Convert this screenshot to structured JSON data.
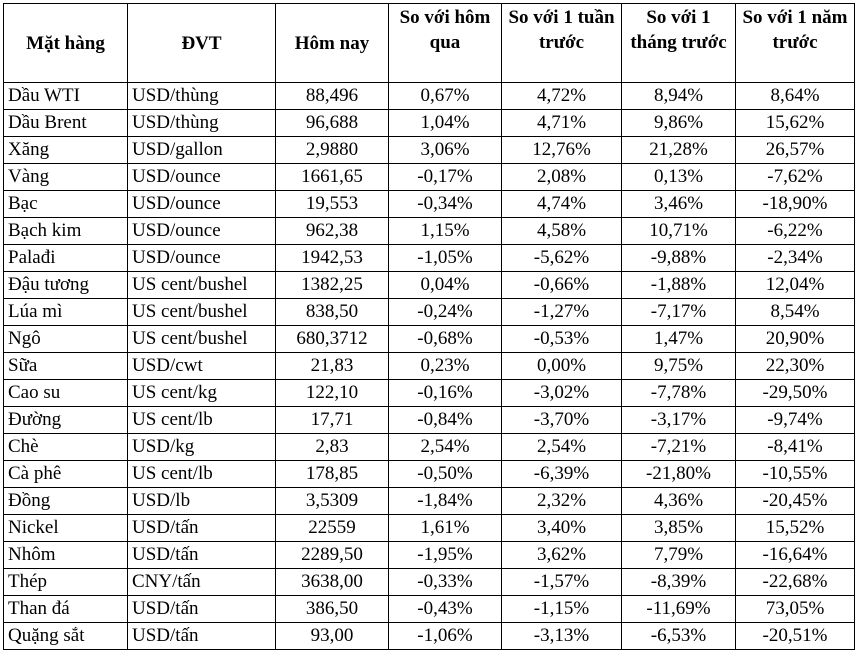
{
  "headers": [
    "Mặt hàng",
    "ĐVT",
    "Hôm nay",
    "So với hôm qua",
    "So với 1 tuần trước",
    "So với 1 tháng trước",
    "So với 1 năm trước"
  ],
  "rows": [
    [
      "Dầu WTI",
      "USD/thùng",
      "88,496",
      "0,67%",
      "4,72%",
      "8,94%",
      "8,64%"
    ],
    [
      "Dầu Brent",
      "USD/thùng",
      "96,688",
      "1,04%",
      "4,71%",
      "9,86%",
      "15,62%"
    ],
    [
      "Xăng",
      "USD/gallon",
      "2,9880",
      "3,06%",
      "12,76%",
      "21,28%",
      "26,57%"
    ],
    [
      "Vàng",
      "USD/ounce",
      "1661,65",
      "-0,17%",
      "2,08%",
      "0,13%",
      "-7,62%"
    ],
    [
      "Bạc",
      "USD/ounce",
      "19,553",
      "-0,34%",
      "4,74%",
      "3,46%",
      "-18,90%"
    ],
    [
      "Bạch kim",
      "USD/ounce",
      "962,38",
      "1,15%",
      "4,58%",
      "10,71%",
      "-6,22%"
    ],
    [
      "Palađi",
      "USD/ounce",
      "1942,53",
      "-1,05%",
      "-5,62%",
      "-9,88%",
      "-2,34%"
    ],
    [
      "Đậu tương",
      "US cent/bushel",
      "1382,25",
      "0,04%",
      "-0,66%",
      "-1,88%",
      "12,04%"
    ],
    [
      "Lúa mì",
      "US cent/bushel",
      "838,50",
      "-0,24%",
      "-1,27%",
      "-7,17%",
      "8,54%"
    ],
    [
      "Ngô",
      "US cent/bushel",
      "680,3712",
      "-0,68%",
      "-0,53%",
      "1,47%",
      "20,90%"
    ],
    [
      "Sữa",
      "USD/cwt",
      "21,83",
      "0,23%",
      "0,00%",
      "9,75%",
      "22,30%"
    ],
    [
      "Cao su",
      "US cent/kg",
      "122,10",
      "-0,16%",
      "-3,02%",
      "-7,78%",
      "-29,50%"
    ],
    [
      "Đường",
      "US cent/lb",
      "17,71",
      "-0,84%",
      "-3,70%",
      "-3,17%",
      "-9,74%"
    ],
    [
      "Chè",
      "USD/kg",
      "2,83",
      "2,54%",
      "2,54%",
      "-7,21%",
      "-8,41%"
    ],
    [
      "Cà phê",
      "US cent/lb",
      "178,85",
      "-0,50%",
      "-6,39%",
      "-21,80%",
      "-10,55%"
    ],
    [
      "Đồng",
      "USD/lb",
      "3,5309",
      "-1,84%",
      "2,32%",
      "4,36%",
      "-20,45%"
    ],
    [
      "Nickel",
      "USD/tấn",
      "22559",
      "1,61%",
      "3,40%",
      "3,85%",
      "15,52%"
    ],
    [
      "Nhôm",
      "USD/tấn",
      "2289,50",
      "-1,95%",
      "3,62%",
      "7,79%",
      "-16,64%"
    ],
    [
      "Thép",
      "CNY/tấn",
      "3638,00",
      "-0,33%",
      "-1,57%",
      "-8,39%",
      "-22,68%"
    ],
    [
      "Than đá",
      "USD/tấn",
      "386,50",
      "-0,43%",
      "-1,15%",
      "-11,69%",
      "73,05%"
    ],
    [
      "Quặng sắt",
      "USD/tấn",
      "93,00",
      "-1,06%",
      "-3,13%",
      "-6,53%",
      "-20,51%"
    ]
  ]
}
